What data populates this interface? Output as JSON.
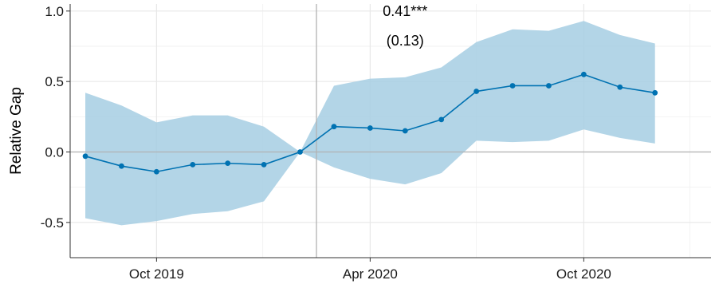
{
  "chart_data": {
    "type": "line",
    "title": "",
    "xlabel": "",
    "ylabel": "Relative Gap",
    "ylim": [
      -0.75,
      1.05
    ],
    "xlim": [
      "2019-07-19",
      "2021-01-18"
    ],
    "yticks": [
      {
        "value": -0.5,
        "label": "-0.5"
      },
      {
        "value": 0.0,
        "label": "0.0"
      },
      {
        "value": 0.5,
        "label": "0.5"
      },
      {
        "value": 1.0,
        "label": "1.0"
      }
    ],
    "xticks": [
      {
        "value": "2019-10-01",
        "label": "Oct 2019"
      },
      {
        "value": "2020-04-01",
        "label": "Apr 2020"
      },
      {
        "value": "2020-10-01",
        "label": "Oct 2020"
      }
    ],
    "grid": true,
    "event_line": "2020-02-15",
    "zero_line": 0,
    "series": [
      {
        "color": "#0072B2",
        "band_color": "#A6CEE3",
        "x": [
          "2019-08-01",
          "2019-09-01",
          "2019-10-01",
          "2019-11-01",
          "2019-12-01",
          "2020-01-01",
          "2020-02-01",
          "2020-03-01",
          "2020-04-01",
          "2020-05-01",
          "2020-06-01",
          "2020-07-01",
          "2020-08-01",
          "2020-09-01",
          "2020-10-01",
          "2020-11-01",
          "2020-12-01"
        ],
        "y": [
          -0.03,
          -0.1,
          -0.14,
          -0.09,
          -0.08,
          -0.09,
          0.0,
          0.18,
          0.17,
          0.15,
          0.23,
          0.43,
          0.47,
          0.47,
          0.55,
          0.46,
          0.42
        ],
        "lower": [
          -0.47,
          -0.52,
          -0.49,
          -0.44,
          -0.42,
          -0.35,
          0.0,
          -0.11,
          -0.19,
          -0.23,
          -0.15,
          0.08,
          0.07,
          0.08,
          0.16,
          0.1,
          0.06
        ],
        "upper": [
          0.42,
          0.33,
          0.21,
          0.26,
          0.26,
          0.18,
          0.0,
          0.47,
          0.52,
          0.53,
          0.6,
          0.78,
          0.87,
          0.86,
          0.93,
          0.83,
          0.77
        ]
      }
    ],
    "annotations": [
      {
        "text": "0.41***",
        "x": "2020-05-01",
        "y": 1.0
      },
      {
        "text": "(0.13)",
        "x": "2020-05-01",
        "y": 0.79
      }
    ]
  }
}
